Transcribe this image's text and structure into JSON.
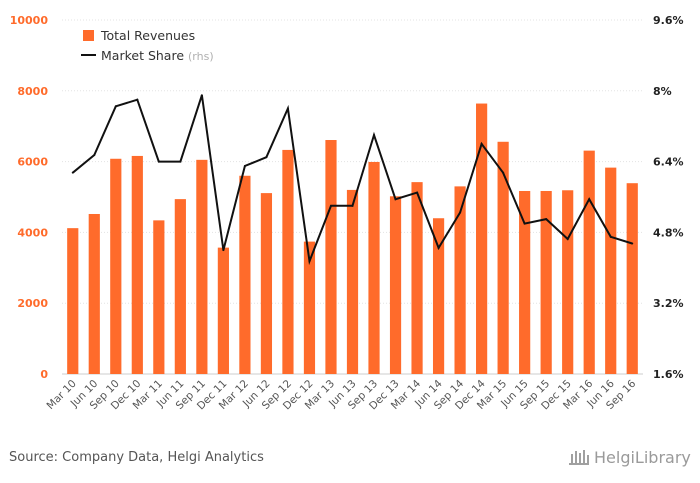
{
  "chart_data": {
    "type": "bar",
    "categories": [
      "Mar 10",
      "Jun 10",
      "Sep 10",
      "Dec 10",
      "Mar 11",
      "Jun 11",
      "Sep 11",
      "Dec 11",
      "Mar 12",
      "Jun 12",
      "Sep 12",
      "Dec 12",
      "Mar 13",
      "Jun 13",
      "Sep 13",
      "Dec 13",
      "Mar 14",
      "Jun 14",
      "Sep 14",
      "Dec 14",
      "Mar 15",
      "Jun 15",
      "Sep 15",
      "Dec 15",
      "Mar 16",
      "Jun 16",
      "Sep 16"
    ],
    "series": [
      {
        "name": "Total Revenues",
        "type": "bar",
        "axis": "left",
        "color": "#ff6b2b",
        "values": [
          4120,
          4520,
          6080,
          6160,
          4340,
          4940,
          6050,
          3570,
          5600,
          5110,
          6330,
          3740,
          6610,
          5200,
          5990,
          5020,
          5420,
          4400,
          5300,
          7640,
          6560,
          5170,
          5170,
          5190,
          6310,
          5830,
          5390
        ]
      },
      {
        "name": "Market Share",
        "name_suffix": "(rhs)",
        "type": "line",
        "axis": "right",
        "color": "#111111",
        "values": [
          6.15,
          6.55,
          7.65,
          7.8,
          6.4,
          6.4,
          7.9,
          4.4,
          6.3,
          6.5,
          7.6,
          4.15,
          5.4,
          5.4,
          7.0,
          5.55,
          5.7,
          4.45,
          5.25,
          6.8,
          6.15,
          5.0,
          5.1,
          4.65,
          5.55,
          4.7,
          4.55
        ]
      }
    ],
    "y_left": {
      "ylim": [
        0,
        10000
      ],
      "ticks": [
        "0",
        "2000",
        "4000",
        "6000",
        "8000",
        "10000"
      ]
    },
    "y_right": {
      "ylim": [
        1.6,
        9.6
      ],
      "ticks": [
        "1.6%",
        "3.2%",
        "4.8%",
        "6.4%",
        "8%",
        "9.6%"
      ]
    },
    "grid": true,
    "legend": "top-left"
  },
  "footer": {
    "source": "Source: Company Data, Helgi Analytics",
    "logo": "HelgiLibrary"
  }
}
